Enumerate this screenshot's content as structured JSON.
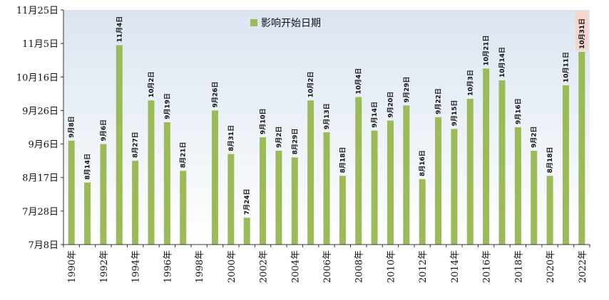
{
  "chart_data": {
    "type": "bar",
    "legend": {
      "label": "影响开始日期",
      "placement": "top-center"
    },
    "y_axis": {
      "ticks": [
        "7月8日",
        "7月28日",
        "8月17日",
        "9月6日",
        "9月26日",
        "10月16日",
        "11月5日",
        "11月25日"
      ],
      "ylim": [
        "07-08",
        "11-25"
      ]
    },
    "x_tick_labels": [
      "1990年",
      "1992年",
      "1994年",
      "1996年",
      "1998年",
      "2000年",
      "2002年",
      "2004年",
      "2006年",
      "2008年",
      "2010年",
      "2012年",
      "2014年",
      "2016年",
      "2018年",
      "2020年",
      "2022年"
    ],
    "categories": [
      "1990",
      "1991",
      "1992",
      "1993",
      "1994",
      "1995",
      "1996",
      "1997",
      "1998",
      "1999",
      "2000",
      "2001",
      "2002",
      "2003",
      "2004",
      "2005",
      "2006",
      "2007",
      "2008",
      "2009",
      "2010",
      "2011",
      "2012",
      "2013",
      "2014",
      "2015",
      "2016",
      "2017",
      "2018",
      "2019",
      "2020",
      "2021",
      "2022"
    ],
    "series": [
      {
        "values": [
          "09-08",
          "08-14",
          "09-06",
          "11-04",
          "08-27",
          "10-02",
          "09-19",
          "08-21",
          null,
          "09-26",
          "08-31",
          "07-24",
          "09-10",
          "09-02",
          "08-29",
          "10-02",
          "09-13",
          "08-18",
          "10-04",
          "09-14",
          "09-20",
          "09-29",
          "08-16",
          "09-22",
          "09-15",
          "10-03",
          "10-21",
          "10-14",
          "09-16",
          "09-02",
          "08-18",
          "10-11",
          "10-31"
        ],
        "labels": [
          "9月8日",
          "8月14日",
          "9月6日",
          "11月4日",
          "8月27日",
          "10月2日",
          "9月19日",
          "8月21日",
          "",
          "9月26日",
          "8月31日",
          "7月24日",
          "9月10日",
          "9月2日",
          "8月29日",
          "10月2日",
          "9月13日",
          "8月18日",
          "10月4日",
          "9月14日",
          "9月20日",
          "9月29日",
          "8月16日",
          "9月22日",
          "9月15日",
          "10月3日",
          "10月21日",
          "10月14日",
          "9月16日",
          "9月2日",
          "8月18日",
          "10月11日",
          "10月31日"
        ]
      }
    ],
    "highlight_index": 32,
    "grid": false,
    "colors": {
      "bar": "#9bbb59",
      "plot_background_top": "#dbe5f1",
      "plot_background_bottom": "#ffffff",
      "highlight_box": "#f6d5cf"
    }
  }
}
